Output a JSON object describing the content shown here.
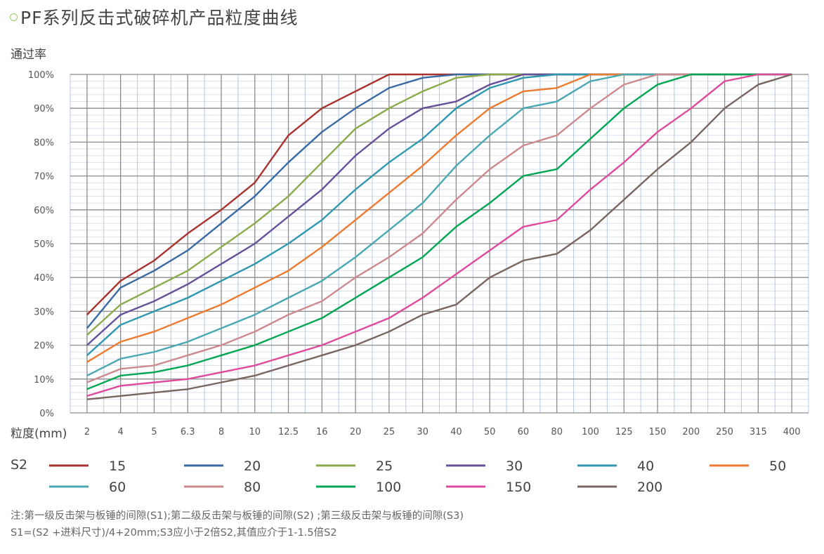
{
  "title": "PF系列反击式破碎机产品粒度曲线",
  "title_bullet_color": "#9cc46a",
  "note": {
    "line1": "注:第一级反击架与板锤的间隙(S1);第二级反击架与板锤的间隙(S2) ;第三级反击架与板锤的间隙(S3)",
    "line2": "S1=(S2 +进料尺寸)/4+20mm;S3应小于2倍S2,其值应介于1-1.5倍S2"
  },
  "chart_data": {
    "type": "line",
    "ylabel": "通过率",
    "xlabel": "粒度(mm)",
    "legend_title": "S2",
    "legend_placement": "bottom",
    "grid": true,
    "ylim": [
      0,
      100
    ],
    "yticks": [
      "0%",
      "10%",
      "20%",
      "30%",
      "40%",
      "50%",
      "60%",
      "70%",
      "80%",
      "90%",
      "100%"
    ],
    "categories": [
      "2",
      "4",
      "5",
      "6.3",
      "8",
      "10",
      "12.5",
      "16",
      "20",
      "25",
      "30",
      "40",
      "50",
      "60",
      "80",
      "100",
      "125",
      "150",
      "200",
      "250",
      "315",
      "400"
    ],
    "series": [
      {
        "name": "15",
        "color": "#a8322e",
        "values": [
          29,
          39,
          45,
          53,
          60,
          68,
          82,
          90,
          95,
          100,
          100,
          100,
          100,
          100,
          100,
          100,
          100,
          100,
          100,
          100,
          100,
          100
        ]
      },
      {
        "name": "20",
        "color": "#3a6aa3",
        "values": [
          25,
          37,
          42,
          48,
          56,
          64,
          74,
          83,
          90,
          96,
          99,
          100,
          100,
          100,
          100,
          100,
          100,
          100,
          100,
          100,
          100,
          100
        ]
      },
      {
        "name": "25",
        "color": "#8aab4a",
        "values": [
          23,
          32,
          37,
          42,
          49,
          56,
          64,
          74,
          84,
          90,
          95,
          99,
          100,
          100,
          100,
          100,
          100,
          100,
          100,
          100,
          100,
          100
        ]
      },
      {
        "name": "30",
        "color": "#66509a",
        "values": [
          20,
          29,
          33,
          38,
          44,
          50,
          58,
          66,
          76,
          84,
          90,
          92,
          97,
          100,
          100,
          100,
          100,
          100,
          100,
          100,
          100,
          100
        ]
      },
      {
        "name": "40",
        "color": "#2f98b0",
        "values": [
          17,
          26,
          30,
          34,
          39,
          44,
          50,
          57,
          66,
          74,
          81,
          90,
          96,
          99,
          100,
          100,
          100,
          100,
          100,
          100,
          100,
          100
        ]
      },
      {
        "name": "50",
        "color": "#ec7b2f",
        "values": [
          15,
          21,
          24,
          28,
          32,
          37,
          42,
          49,
          57,
          65,
          73,
          82,
          90,
          95,
          96,
          100,
          100,
          100,
          100,
          100,
          100,
          100
        ]
      },
      {
        "name": "60",
        "color": "#4aa8b3",
        "values": [
          11,
          16,
          18,
          21,
          25,
          29,
          34,
          39,
          46,
          54,
          62,
          73,
          82,
          90,
          92,
          98,
          100,
          100,
          100,
          100,
          100,
          100
        ]
      },
      {
        "name": "80",
        "color": "#cc8a8e",
        "values": [
          9,
          13,
          14,
          17,
          20,
          24,
          29,
          33,
          40,
          46,
          53,
          63,
          72,
          79,
          82,
          90,
          97,
          100,
          100,
          100,
          100,
          100
        ]
      },
      {
        "name": "100",
        "color": "#00a653",
        "values": [
          7,
          11,
          12,
          14,
          17,
          20,
          24,
          28,
          34,
          40,
          46,
          55,
          62,
          70,
          72,
          81,
          90,
          97,
          100,
          100,
          100,
          100
        ]
      },
      {
        "name": "150",
        "color": "#de4a9c",
        "values": [
          5,
          8,
          9,
          10,
          12,
          14,
          17,
          20,
          24,
          28,
          34,
          41,
          48,
          55,
          57,
          66,
          74,
          83,
          90,
          98,
          100,
          100
        ]
      },
      {
        "name": "200",
        "color": "#7a6660",
        "values": [
          4,
          5,
          6,
          7,
          9,
          11,
          14,
          17,
          20,
          24,
          29,
          32,
          40,
          45,
          47,
          54,
          63,
          72,
          80,
          90,
          97,
          100
        ]
      }
    ]
  }
}
